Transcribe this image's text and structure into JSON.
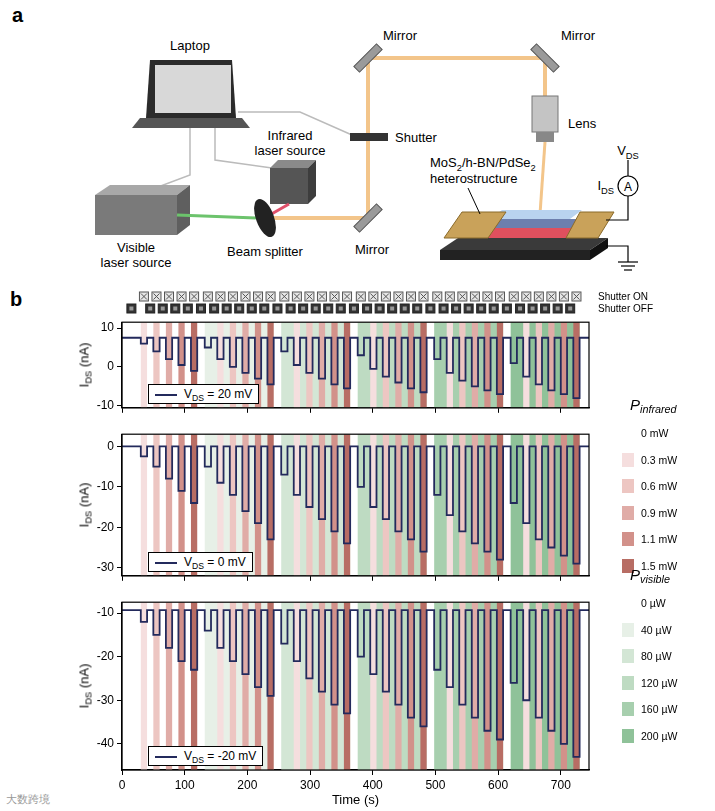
{
  "panel_a": {
    "label": "a",
    "laptop": "Laptop",
    "mirrors": [
      "Mirror",
      "Mirror",
      "Mirror"
    ],
    "shutter": "Shutter",
    "lens": "Lens",
    "infrared_source": [
      "Infrared",
      "laser source"
    ],
    "visible_source": [
      "Visible",
      "laser source"
    ],
    "beam_splitter": "Beam splitter",
    "device": [
      [
        {
          "t": "MoS"
        },
        {
          "t": "2",
          "sub": true
        },
        {
          "t": "/h-BN/PdSe"
        },
        {
          "t": "2",
          "sub": true
        }
      ],
      [
        {
          "t": "heterostructure"
        }
      ]
    ],
    "voltage": [
      {
        "t": "V"
      },
      {
        "t": "DS",
        "sub": true
      }
    ],
    "current": [
      {
        "t": "I"
      },
      {
        "t": "DS",
        "sub": true
      }
    ],
    "ammeter": "A"
  },
  "panel_b": {
    "label": "b",
    "shutter_on": "Shutter ON",
    "shutter_off": "Shutter OFF",
    "pulse_on": [
      30,
      50,
      70,
      90,
      110,
      132,
      152,
      172,
      192,
      212,
      232,
      254,
      274,
      294,
      314,
      334,
      354,
      376,
      396,
      416,
      436,
      456,
      476,
      498,
      518,
      538,
      558,
      578,
      598,
      620,
      640,
      660,
      680,
      700,
      720
    ],
    "pulse_off": [
      40,
      60,
      80,
      100,
      120,
      142,
      162,
      182,
      202,
      222,
      242,
      264,
      284,
      304,
      324,
      344,
      364,
      386,
      406,
      426,
      446,
      466,
      486,
      508,
      528,
      548,
      568,
      588,
      608,
      630,
      650,
      670,
      690,
      710,
      730
    ],
    "infrared_mW": [
      0.3,
      0.6,
      0.9,
      1.1,
      1.5,
      0,
      0.3,
      0.6,
      0.9,
      1.1,
      1.5,
      0,
      0.3,
      0.6,
      0.9,
      1.1,
      1.5,
      0,
      0.3,
      0.6,
      0.9,
      1.1,
      1.5,
      0,
      0.3,
      0.6,
      0.9,
      1.1,
      1.5,
      0,
      0.3,
      0.6,
      0.9,
      1.1,
      1.5
    ],
    "visible_uW": [
      0,
      0,
      0,
      0,
      0,
      40,
      40,
      40,
      40,
      40,
      40,
      80,
      80,
      80,
      80,
      80,
      80,
      120,
      120,
      120,
      120,
      120,
      120,
      160,
      160,
      160,
      160,
      160,
      160,
      200,
      200,
      200,
      200,
      200,
      200
    ],
    "infrared_legend": {
      "title": [
        {
          "t": "P"
        },
        {
          "t": "infrared",
          "sub": true
        }
      ],
      "items": [
        {
          "value": 0,
          "label": "0 mW",
          "color": "#ffffff"
        },
        {
          "value": 0.3,
          "label": "0.3 mW",
          "color": "#f5dede"
        },
        {
          "value": 0.6,
          "label": "0.6 mW",
          "color": "#edc6c2"
        },
        {
          "value": 0.9,
          "label": "0.9 mW",
          "color": "#e0aca7"
        },
        {
          "value": 1.1,
          "label": "1.1 mW",
          "color": "#d2918a"
        },
        {
          "value": 1.5,
          "label": "1.5 mW",
          "color": "#b86d64"
        }
      ]
    },
    "visible_legend": {
      "title": [
        {
          "t": "P"
        },
        {
          "t": "visible",
          "sub": true
        }
      ],
      "items": [
        {
          "value": 0,
          "label": "0 µW",
          "color": "#ffffff"
        },
        {
          "value": 40,
          "label": "40 µW",
          "color": "#e7f0e7"
        },
        {
          "value": 80,
          "label": "80 µW",
          "color": "#d3e6d5"
        },
        {
          "value": 120,
          "label": "120 µW",
          "color": "#bedbc2"
        },
        {
          "value": 160,
          "label": "160 µW",
          "color": "#a7cfae"
        },
        {
          "value": 200,
          "label": "200 µW",
          "color": "#8fc299"
        }
      ]
    },
    "watermark": "大数跨境"
  },
  "chart_data": [
    {
      "type": "line",
      "y_label": [
        {
          "t": "I"
        },
        {
          "t": "DS",
          "sub": true
        },
        {
          "t": " (nA)"
        }
      ],
      "xlim": [
        0,
        745
      ],
      "xticks": [
        0,
        100,
        200,
        300,
        400,
        500,
        600,
        700
      ],
      "ylim": [
        -10.5,
        11.5
      ],
      "yticks": [
        -10,
        0,
        10
      ],
      "grid": false,
      "tick_labels": "y",
      "series": [
        {
          "name": [
            {
              "t": "V"
            },
            {
              "t": "DS",
              "sub": true
            },
            {
              "t": " = 20 mV"
            }
          ],
          "color": "#232a5c",
          "baseline": 7.5,
          "values": [
            6,
            4,
            2,
            0.5,
            -1,
            5,
            2,
            0,
            -1.5,
            -3,
            -4.5,
            4,
            0.5,
            -1.5,
            -3,
            -4.5,
            -5.5,
            3,
            -0.5,
            -2.5,
            -4,
            -5.5,
            -6.5,
            2,
            -1.5,
            -3.5,
            -5,
            -6,
            -7,
            1,
            -2.5,
            -4.5,
            -6,
            -7,
            -8
          ]
        }
      ]
    },
    {
      "type": "line",
      "y_label": [
        {
          "t": "I"
        },
        {
          "t": "DS",
          "sub": true
        },
        {
          "t": " (nA)"
        }
      ],
      "xlim": [
        0,
        745
      ],
      "xticks": [
        0,
        100,
        200,
        300,
        400,
        500,
        600,
        700
      ],
      "ylim": [
        -32,
        3
      ],
      "yticks": [
        -30,
        -20,
        -10,
        0
      ],
      "grid": false,
      "tick_labels": "y",
      "series": [
        {
          "name": [
            {
              "t": "V"
            },
            {
              "t": "DS",
              "sub": true
            },
            {
              "t": " = 0 mV"
            }
          ],
          "color": "#232a5c",
          "baseline": 0,
          "values": [
            -2.5,
            -5,
            -8,
            -11,
            -14,
            -5,
            -9,
            -12,
            -16,
            -19,
            -23,
            -7,
            -12,
            -15,
            -18,
            -21,
            -24,
            -10,
            -15,
            -18,
            -21,
            -23,
            -26,
            -12,
            -17,
            -21,
            -24,
            -26,
            -28,
            -14,
            -19,
            -23,
            -25,
            -27,
            -29
          ]
        }
      ]
    },
    {
      "type": "line",
      "y_label": [
        {
          "t": "I"
        },
        {
          "t": "DS",
          "sub": true
        },
        {
          "t": " (nA)"
        }
      ],
      "x_label": "Time (s)",
      "xlim": [
        0,
        745
      ],
      "xticks": [
        0,
        100,
        200,
        300,
        400,
        500,
        600,
        700
      ],
      "ylim": [
        -46,
        -7.5
      ],
      "yticks": [
        -40,
        -30,
        -20,
        -10
      ],
      "grid": false,
      "series": [
        {
          "name": [
            {
              "t": "V"
            },
            {
              "t": "DS",
              "sub": true
            },
            {
              "t": " = -20 mV"
            }
          ],
          "color": "#232a5c",
          "baseline": -9.3,
          "values": [
            -12,
            -15,
            -18,
            -21,
            -23,
            -14,
            -18,
            -21,
            -24,
            -27,
            -29,
            -17,
            -21,
            -25,
            -28,
            -31,
            -33,
            -20,
            -24,
            -28,
            -31,
            -34,
            -36,
            -23,
            -27,
            -31,
            -34,
            -37,
            -39,
            -26,
            -30,
            -34,
            -37,
            -40,
            -43
          ]
        }
      ]
    }
  ]
}
